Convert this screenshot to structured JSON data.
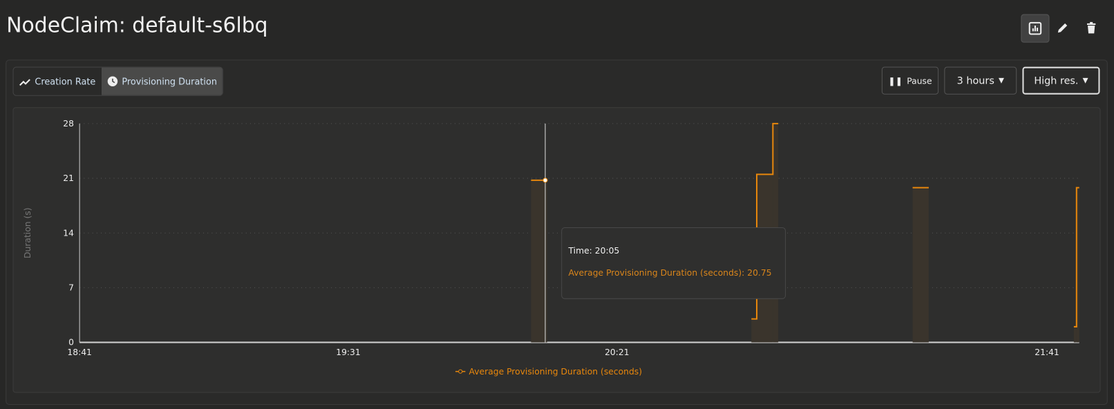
{
  "header": {
    "title": "NodeClaim: default-s6lbq",
    "icons": [
      "chart-icon",
      "edit-icon",
      "delete-icon"
    ]
  },
  "tabs": [
    {
      "label": "Creation Rate",
      "icon": "trend-icon"
    },
    {
      "label": "Provisioning Duration",
      "icon": "clock-icon",
      "active": true
    }
  ],
  "controls": {
    "pause_label": "Pause",
    "range_label": "3 hours",
    "resolution_label": "High res."
  },
  "tooltip": {
    "time": "Time: 20:05",
    "value": "Average Provisioning Duration (seconds): 20.75"
  },
  "colors": {
    "series": "#e8870c",
    "background": "#272726"
  },
  "chart_data": {
    "type": "line",
    "step": true,
    "ylabel": "Duration (s)",
    "xlim": [
      "18:41",
      "21:47"
    ],
    "ylim": [
      0,
      28
    ],
    "xticks": [
      "18:41",
      "19:31",
      "20:21",
      "21:41"
    ],
    "yticks": [
      0,
      7,
      14,
      21,
      28
    ],
    "grid": true,
    "legend": "bottom",
    "series": [
      {
        "name": "Average Provisioning Duration (seconds)",
        "segments": [
          {
            "start": "20:05",
            "end": "20:08",
            "value": 20.75
          },
          {
            "start": "20:46",
            "end": "20:47",
            "value": 3
          },
          {
            "start": "20:47",
            "end": "20:50",
            "value": 21.5
          },
          {
            "start": "20:50",
            "end": "20:51",
            "value": 28
          },
          {
            "start": "21:16",
            "end": "21:19",
            "value": 19.8
          },
          {
            "start": "21:46",
            "end": "21:46.5",
            "value": 2
          },
          {
            "start": "21:46.5",
            "end": "21:47",
            "value": 19.8
          }
        ]
      }
    ],
    "hover": {
      "x": "20:05",
      "y": 20.75
    }
  }
}
